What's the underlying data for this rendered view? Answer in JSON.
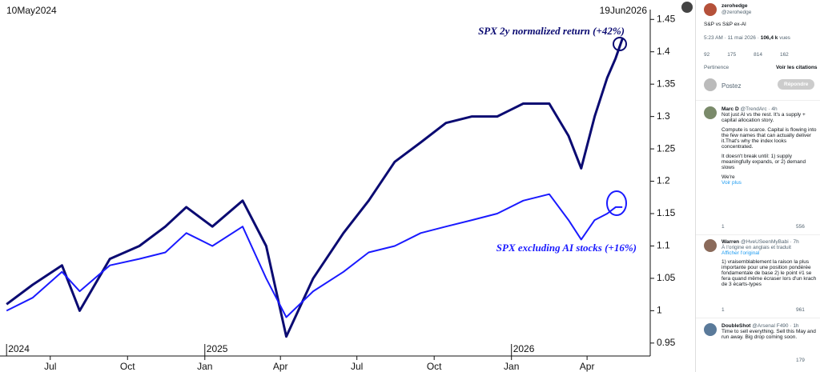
{
  "chart_data": {
    "type": "line",
    "start_label": "10May2024",
    "end_label": "19Jun2026",
    "x": [
      "2024-05-10",
      "2024-06-10",
      "2024-07-15",
      "2024-08-05",
      "2024-09-10",
      "2024-10-15",
      "2024-11-15",
      "2024-12-10",
      "2025-01-10",
      "2025-02-15",
      "2025-03-15",
      "2025-04-08",
      "2025-05-10",
      "2025-06-15",
      "2025-07-15",
      "2025-08-15",
      "2025-09-15",
      "2025-10-15",
      "2025-11-15",
      "2025-12-15",
      "2026-01-15",
      "2026-02-15",
      "2026-03-10",
      "2026-03-25",
      "2026-04-10",
      "2026-04-25",
      "2026-05-05",
      "2026-05-13"
    ],
    "series": [
      {
        "name": "SPX 2y normalized return (+42%)",
        "color": "#0b0b72",
        "values": [
          1.01,
          1.04,
          1.07,
          1.0,
          1.08,
          1.1,
          1.13,
          1.16,
          1.13,
          1.17,
          1.1,
          0.96,
          1.05,
          1.12,
          1.17,
          1.23,
          1.26,
          1.29,
          1.3,
          1.3,
          1.32,
          1.32,
          1.27,
          1.22,
          1.3,
          1.36,
          1.39,
          1.42
        ]
      },
      {
        "name": "SPX excluding AI stocks (+16%)",
        "color": "#1a1aff",
        "values": [
          1.0,
          1.02,
          1.06,
          1.03,
          1.07,
          1.08,
          1.09,
          1.12,
          1.1,
          1.13,
          1.05,
          0.99,
          1.03,
          1.06,
          1.09,
          1.1,
          1.12,
          1.13,
          1.14,
          1.15,
          1.17,
          1.18,
          1.14,
          1.11,
          1.14,
          1.15,
          1.16,
          1.16
        ]
      }
    ],
    "xlim": [
      "2024-05-06",
      "2026-06-19"
    ],
    "xticks": [
      {
        "value": "2024-07-01",
        "label": "Jul"
      },
      {
        "value": "2024-10-01",
        "label": "Oct"
      },
      {
        "value": "2025-01-01",
        "label": "Jan"
      },
      {
        "value": "2025-04-01",
        "label": "Apr"
      },
      {
        "value": "2025-07-01",
        "label": "Jul"
      },
      {
        "value": "2025-10-01",
        "label": "Oct"
      },
      {
        "value": "2026-01-01",
        "label": "Jan"
      },
      {
        "value": "2026-04-01",
        "label": "Apr"
      }
    ],
    "year_labels": [
      {
        "value": "2024-05-10",
        "label": "2024"
      },
      {
        "value": "2025-01-01",
        "label": "2025"
      },
      {
        "value": "2026-01-01",
        "label": "2026"
      }
    ],
    "ylim": [
      0.93,
      1.48
    ],
    "yticks": [
      0.95,
      1,
      1.05,
      1.1,
      1.15,
      1.2,
      1.25,
      1.3,
      1.35,
      1.4,
      1.45
    ]
  },
  "sidebar": {
    "post": {
      "name": "zerohedge",
      "handle": "@zerohedge",
      "text": "S&P vs S&P ex-AI",
      "time": "5:23 AM · 11 mai 2026 ·",
      "views": "106,4 k",
      "views_label": "vues",
      "stats": [
        "92",
        "175",
        "814",
        "162"
      ],
      "sort": "Pertinence",
      "quotes": "Voir les citations",
      "compose": "Postez",
      "reply_button": "Répondre"
    },
    "replies": [
      {
        "name": "Marc D",
        "handle": "@TrendArc · 4h",
        "paragraphs": [
          "Not just AI vs the rest. It's a supply + capital allocation story.",
          "Compute is scarce. Capital is flowing into the few names that can actually deliver it.That's why the index looks concentrated.",
          "It doesn't break until: 1) supply meaningfully expands, or 2) demand slows",
          "We're"
        ],
        "more": "Voir plus",
        "stats": [
          "1",
          "556"
        ]
      },
      {
        "name": "Warren",
        "handle": "@HveUSeenMyBabi · 7h",
        "translated": "À l'origine en anglais et traduit",
        "original": "Afficher l'original",
        "paragraphs": [
          "1) vraisemblablement la raison la plus importante pour une position pondérée fondamentale de base 2) le point #1 se fera quand même écraser lors d'un krach de 3 écarts-types"
        ],
        "stats": [
          "1",
          "961"
        ]
      },
      {
        "name": "DoubleShot",
        "handle": "@Arsenal F490 · 1h",
        "paragraphs": [
          "Time to sell everything. Sell this May and run away. Big drop coming soon."
        ],
        "stats": [
          "179"
        ]
      }
    ]
  }
}
